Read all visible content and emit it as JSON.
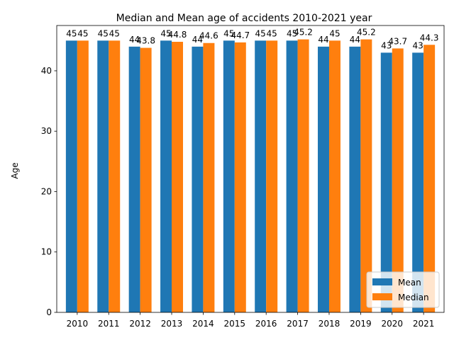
{
  "chart_data": {
    "type": "bar",
    "title": "Median and Mean age of accidents 2010-2021 year",
    "xlabel": "",
    "ylabel": "Age",
    "ylim": [
      0,
      47.5
    ],
    "yticks": [
      0,
      10,
      20,
      30,
      40
    ],
    "categories": [
      "2010",
      "2011",
      "2012",
      "2013",
      "2014",
      "2015",
      "2016",
      "2017",
      "2018",
      "2019",
      "2020",
      "2021"
    ],
    "series": [
      {
        "name": "Mean",
        "color": "#1f77b4",
        "values": [
          45,
          45,
          44,
          45,
          44,
          45,
          45,
          45,
          44,
          44,
          43,
          43
        ],
        "labels": [
          "45",
          "45",
          "44",
          "45",
          "44",
          "45",
          "45",
          "45",
          "44",
          "44",
          "43",
          "43"
        ]
      },
      {
        "name": "Median",
        "color": "#ff7f0e",
        "values": [
          45,
          45,
          43.8,
          44.8,
          44.6,
          44.7,
          45,
          45.2,
          45,
          45.2,
          43.7,
          44.3
        ],
        "labels": [
          "45",
          "45",
          "43.8",
          "44.8",
          "44.6",
          "44.7",
          "45",
          "45.2",
          "45",
          "45.2",
          "43.7",
          "44.3"
        ]
      }
    ],
    "legend_position": "lower-right",
    "grid": false
  }
}
